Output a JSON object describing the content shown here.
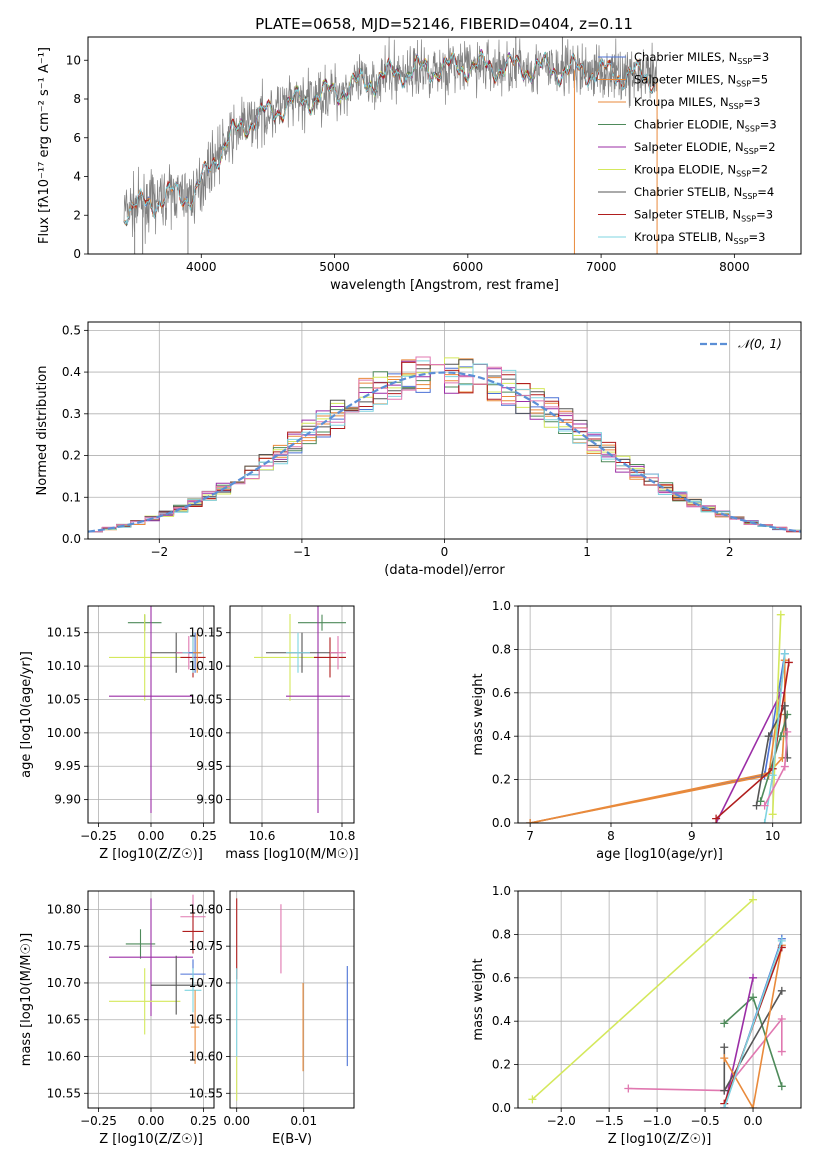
{
  "figure_title": "PLATE=0658, MJD=52146, FIBERID=0404, z=0.11",
  "colors": {
    "chabrier_miles": "#4c72d6",
    "salpeter_miles": "#e98a3b",
    "kroupa_miles": "#e98a3b",
    "chabrier_elodie": "#4e8a5a",
    "salpeter_elodie": "#9b2ea6",
    "kroupa_elodie": "#d4e85c",
    "chabrier_stelib": "#555555",
    "salpeter_stelib": "#b01e1e",
    "kroupa_stelib": "#7fd4e0",
    "data": "#808080",
    "pink": "#e078b0",
    "normal": "#5b8fd6"
  },
  "chart_data": [
    {
      "type": "line",
      "title": "PLATE=0658, MJD=52146, FIBERID=0404, z=0.11",
      "xlabel": "wavelength [Angstrom, rest frame]",
      "ylabel": "Flux [fλ10⁻¹⁷ erg cm⁻² s⁻¹ A⁻¹]",
      "xlim": [
        3150,
        8500
      ],
      "ylim": [
        0,
        11.2
      ],
      "xticks": [
        "4000",
        "5000",
        "6000",
        "7000",
        "8000"
      ],
      "yticks": [
        "0",
        "2",
        "4",
        "6",
        "8",
        "10"
      ],
      "legend_position": "right",
      "legend": [
        "Chabrier MILES, N_SSP=3",
        "Salpeter MILES, N_SSP=5",
        "Kroupa MILES, N_SSP=3",
        "Chabrier ELODIE, N_SSP=3",
        "Salpeter ELODIE, N_SSP=2",
        "Kroupa ELODIE, N_SSP=2",
        "Chabrier STELIB, N_SSP=4",
        "Salpeter STELIB, N_SSP=3",
        "Kroupa STELIB, N_SSP=3"
      ],
      "continuum": {
        "x": [
          3420,
          3600,
          3800,
          3950,
          4100,
          4300,
          4600,
          5000,
          5500,
          6000,
          6500,
          7000,
          7400
        ],
        "y": [
          2.3,
          2.6,
          3.1,
          3.0,
          5.0,
          6.6,
          7.6,
          8.4,
          9.4,
          9.7,
          9.6,
          9.4,
          9.1
        ]
      }
    },
    {
      "type": "histogram",
      "xlabel": "(data-model)/error",
      "ylabel": "Normed distribution",
      "xlim": [
        -2.5,
        2.5
      ],
      "ylim": [
        0,
        0.52
      ],
      "xticks": [
        "−2",
        "−1",
        "0",
        "1",
        "2"
      ],
      "yticks": [
        "0.0",
        "0.1",
        "0.2",
        "0.3",
        "0.4",
        "0.5"
      ],
      "legend": [
        "𝒩(0, 1)"
      ],
      "legend_position": "top-right",
      "bin_width": 0.1
    },
    {
      "type": "scatter",
      "xlabel": "Z [log10(Z/Z☉)]",
      "ylabel": "age  [log10(age/yr)]",
      "xlim": [
        -0.3,
        0.3
      ],
      "ylim": [
        9.865,
        10.19
      ],
      "xticks": [
        "−0.25",
        "0.00",
        "0.25"
      ],
      "yticks": [
        "9.90",
        "9.95",
        "10.00",
        "10.05",
        "10.10",
        "10.15"
      ],
      "points": [
        {
          "color": "chabrier_elodie",
          "x": -0.03,
          "y": 10.165,
          "xerr": 0.08,
          "yerr": 0.012
        },
        {
          "color": "kroupa_elodie",
          "x": -0.03,
          "y": 10.113,
          "xerr": 0.17,
          "yerr": 0.065
        },
        {
          "color": "salpeter_elodie",
          "x": 0.0,
          "y": 10.055,
          "xerr": 0.2,
          "yerr": 0.175
        },
        {
          "color": "chabrier_stelib",
          "x": 0.12,
          "y": 10.12,
          "xerr": 0.12,
          "yerr": 0.03
        },
        {
          "color": "pink",
          "x": 0.18,
          "y": 10.12,
          "xerr": 0.06,
          "yerr": 0.025
        },
        {
          "color": "salpeter_stelib",
          "x": 0.2,
          "y": 10.113,
          "xerr": 0.06,
          "yerr": 0.03
        },
        {
          "color": "kroupa_stelib",
          "x": 0.2,
          "y": 10.12,
          "xerr": 0.05,
          "yerr": 0.03
        },
        {
          "color": "chabrier_miles",
          "x": 0.21,
          "y": 10.12,
          "xerr": 0.03,
          "yerr": 0.03
        },
        {
          "color": "salpeter_miles",
          "x": 0.22,
          "y": 10.12,
          "xerr": 0.02,
          "yerr": 0.03
        }
      ]
    },
    {
      "type": "scatter",
      "xlabel": "mass [log10(M/M☉)]",
      "ylabel": "",
      "xlim": [
        10.52,
        10.83
      ],
      "ylim": [
        9.865,
        10.19
      ],
      "xticks": [
        "10.6",
        "10.8"
      ],
      "yticks": [
        "9.90",
        "9.95",
        "10.00",
        "10.05",
        "10.10",
        "10.15"
      ],
      "points": [
        {
          "color": "chabrier_elodie",
          "x": 10.75,
          "y": 10.165,
          "xerr": 0.06,
          "yerr": 0.012
        },
        {
          "color": "kroupa_elodie",
          "x": 10.67,
          "y": 10.113,
          "xerr": 0.09,
          "yerr": 0.065
        },
        {
          "color": "salpeter_elodie",
          "x": 10.74,
          "y": 10.055,
          "xerr": 0.08,
          "yerr": 0.175
        },
        {
          "color": "chabrier_stelib",
          "x": 10.7,
          "y": 10.12,
          "xerr": 0.09,
          "yerr": 0.03
        },
        {
          "color": "salpeter_stelib",
          "x": 10.77,
          "y": 10.113,
          "xerr": 0.04,
          "yerr": 0.03
        },
        {
          "color": "pink",
          "x": 10.79,
          "y": 10.12,
          "xerr": 0.02,
          "yerr": 0.025
        },
        {
          "color": "kroupa_stelib",
          "x": 10.69,
          "y": 10.12,
          "xerr": 0.03,
          "yerr": 0.03
        }
      ]
    },
    {
      "type": "line",
      "xlabel": "age  [log10(age/yr)]",
      "ylabel": "mass weight",
      "xlim": [
        6.85,
        10.35
      ],
      "ylim": [
        0,
        1.0
      ],
      "xticks": [
        "7",
        "8",
        "9",
        "10"
      ],
      "yticks": [
        "0.0",
        "0.2",
        "0.4",
        "0.6",
        "0.8",
        "1.0"
      ],
      "series": [
        {
          "color": "chabrier_miles",
          "x": [
            7.0,
            9.9,
            10.15
          ],
          "y": [
            0.0,
            0.22,
            0.78
          ]
        },
        {
          "color": "salpeter_miles",
          "x": [
            7.0,
            9.95,
            10.12,
            10.15,
            10.15
          ],
          "y": [
            0.0,
            0.23,
            0.3,
            0.5,
            0.75
          ]
        },
        {
          "color": "kroupa_miles",
          "x": [
            7.0,
            9.95,
            10.15
          ],
          "y": [
            0.0,
            0.22,
            0.75
          ]
        },
        {
          "color": "chabrier_elodie",
          "x": [
            9.85,
            10.1,
            10.18
          ],
          "y": [
            0.1,
            0.4,
            0.5
          ]
        },
        {
          "color": "salpeter_elodie",
          "x": [
            9.3,
            10.1
          ],
          "y": [
            0.0,
            0.6
          ]
        },
        {
          "color": "kroupa_elodie",
          "x": [
            10.0,
            10.1
          ],
          "y": [
            0.04,
            0.96
          ]
        },
        {
          "color": "chabrier_stelib",
          "x": [
            9.8,
            9.95,
            10.15,
            10.18
          ],
          "y": [
            0.08,
            0.4,
            0.54,
            0.3
          ]
        },
        {
          "color": "salpeter_stelib",
          "x": [
            9.3,
            10.0,
            10.2
          ],
          "y": [
            0.02,
            0.25,
            0.74
          ]
        },
        {
          "color": "kroupa_stelib",
          "x": [
            9.9,
            10.0,
            10.15
          ],
          "y": [
            0.0,
            0.22,
            0.78
          ]
        },
        {
          "color": "pink",
          "x": [
            9.9,
            10.15,
            10.18
          ],
          "y": [
            0.08,
            0.26,
            0.42
          ]
        }
      ]
    },
    {
      "type": "scatter",
      "xlabel": "Z [log10(Z/Z☉)]",
      "ylabel": "mass [log10(M/M☉)]",
      "xlim": [
        -0.3,
        0.3
      ],
      "ylim": [
        10.53,
        10.825
      ],
      "xticks": [
        "−0.25",
        "0.00",
        "0.25"
      ],
      "yticks": [
        "10.55",
        "10.60",
        "10.65",
        "10.70",
        "10.75",
        "10.80"
      ],
      "points": [
        {
          "color": "chabrier_elodie",
          "x": -0.05,
          "y": 10.753,
          "xerr": 0.07,
          "yerr": 0.02
        },
        {
          "color": "salpeter_elodie",
          "x": 0.0,
          "y": 10.735,
          "xerr": 0.2,
          "yerr": 0.08
        },
        {
          "color": "kroupa_elodie",
          "x": -0.03,
          "y": 10.675,
          "xerr": 0.17,
          "yerr": 0.045
        },
        {
          "color": "chabrier_stelib",
          "x": 0.12,
          "y": 10.697,
          "xerr": 0.12,
          "yerr": 0.04
        },
        {
          "color": "chabrier_miles",
          "x": 0.2,
          "y": 10.712,
          "xerr": 0.06,
          "yerr": 0.02
        },
        {
          "color": "pink",
          "x": 0.2,
          "y": 10.79,
          "xerr": 0.06,
          "yerr": 0.03
        },
        {
          "color": "salpeter_stelib",
          "x": 0.2,
          "y": 10.77,
          "xerr": 0.05,
          "yerr": 0.03
        },
        {
          "color": "kroupa_stelib",
          "x": 0.2,
          "y": 10.69,
          "xerr": 0.04,
          "yerr": 0.03
        },
        {
          "color": "salpeter_miles",
          "x": 0.21,
          "y": 10.64,
          "xerr": 0.02,
          "yerr": 0.05
        }
      ]
    },
    {
      "type": "scatter",
      "xlabel": "E(B-V)",
      "ylabel": "",
      "xlim": [
        -0.001,
        0.0175
      ],
      "ylim": [
        10.53,
        10.825
      ],
      "xticks": [
        "0.00",
        "0.01"
      ],
      "yticks": [
        "10.55",
        "10.60",
        "10.65",
        "10.70",
        "10.75",
        "10.80"
      ],
      "points": [
        {
          "color": "salpeter_stelib",
          "x": 0.0,
          "y": 10.76,
          "xerr": 0.0,
          "yerr": 0.055
        },
        {
          "color": "kroupa_stelib",
          "x": 0.0,
          "y": 10.66,
          "xerr": 0.0,
          "yerr": 0.06
        },
        {
          "color": "kroupa_elodie",
          "x": 0.0,
          "y": 10.57,
          "xerr": 0.0,
          "yerr": 0.03
        },
        {
          "color": "pink",
          "x": 0.0066,
          "y": 10.76,
          "xerr": 0.0,
          "yerr": 0.047
        },
        {
          "color": "salpeter_miles",
          "x": 0.0099,
          "y": 10.64,
          "xerr": 0.0,
          "yerr": 0.06
        },
        {
          "color": "chabrier_miles",
          "x": 0.0165,
          "y": 10.655,
          "xerr": 0.0,
          "yerr": 0.068
        }
      ]
    },
    {
      "type": "line",
      "xlabel": "Z [log10(Z/Z☉)]",
      "ylabel": "mass weight",
      "xlim": [
        -2.45,
        0.5
      ],
      "ylim": [
        0,
        1.0
      ],
      "xticks": [
        "−2.0",
        "−1.5",
        "−1.0",
        "−0.5",
        "0.0"
      ],
      "yticks": [
        "0.0",
        "0.2",
        "0.4",
        "0.6",
        "0.8",
        "1.0"
      ],
      "series": [
        {
          "color": "kroupa_elodie",
          "x": [
            -2.3,
            0.0
          ],
          "y": [
            0.04,
            0.96
          ]
        },
        {
          "color": "pink",
          "x": [
            -1.3,
            -0.3,
            0.3,
            0.3
          ],
          "y": [
            0.09,
            0.08,
            0.41,
            0.26
          ]
        },
        {
          "color": "chabrier_elodie",
          "x": [
            -0.3,
            0.0,
            0.3
          ],
          "y": [
            0.39,
            0.51,
            0.1
          ]
        },
        {
          "color": "salpeter_elodie",
          "x": [
            -0.3,
            0.0
          ],
          "y": [
            0.0,
            0.6
          ]
        },
        {
          "color": "chabrier_stelib",
          "x": [
            -0.3,
            -0.3,
            0.3
          ],
          "y": [
            0.28,
            0.08,
            0.54
          ]
        },
        {
          "color": "salpeter_miles",
          "x": [
            -0.3,
            0.0,
            0.3
          ],
          "y": [
            0.23,
            0.0,
            0.75
          ]
        },
        {
          "color": "chabrier_miles",
          "x": [
            -0.3,
            0.3
          ],
          "y": [
            0.0,
            0.78
          ]
        },
        {
          "color": "salpeter_stelib",
          "x": [
            -0.3,
            0.3
          ],
          "y": [
            0.02,
            0.74
          ]
        },
        {
          "color": "kroupa_stelib",
          "x": [
            -0.3,
            0.3
          ],
          "y": [
            0.0,
            0.77
          ]
        }
      ]
    }
  ]
}
